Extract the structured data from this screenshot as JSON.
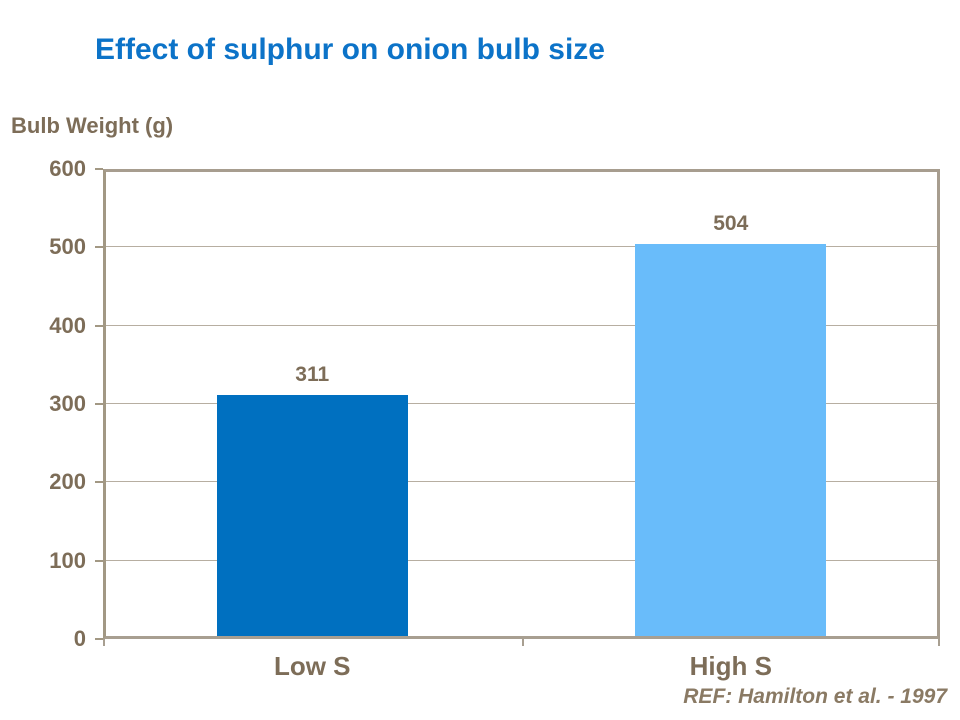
{
  "slide": {
    "title": "Effect of sulphur on onion bulb size",
    "reference": "REF: Hamilton et al. - 1997"
  },
  "chart_data": {
    "type": "bar",
    "title": "Effect of sulphur on onion bulb size",
    "ylabel": "Bulb Weight (g)",
    "xlabel": "",
    "categories": [
      "Low S",
      "High S"
    ],
    "values": [
      311,
      504
    ],
    "data_labels": [
      "311",
      "504"
    ],
    "bar_colors": [
      "#0070c0",
      "#69bcfa"
    ],
    "ylim": [
      0,
      600
    ],
    "yticks": [
      0,
      100,
      200,
      300,
      400,
      500,
      600
    ],
    "grid": true,
    "legend": false,
    "annotation": "REF: Hamilton et al. - 1997"
  },
  "colors": {
    "title_blue": "#0c73c8",
    "axis_text_brown": "#7d6d58",
    "reference_brown": "#8a7a64",
    "gridline": "#b7aea1",
    "plot_border": "#a79d8f",
    "bar_low_s": "#0070c0",
    "bar_high_s": "#69bcfa",
    "background": "#ffffff"
  }
}
